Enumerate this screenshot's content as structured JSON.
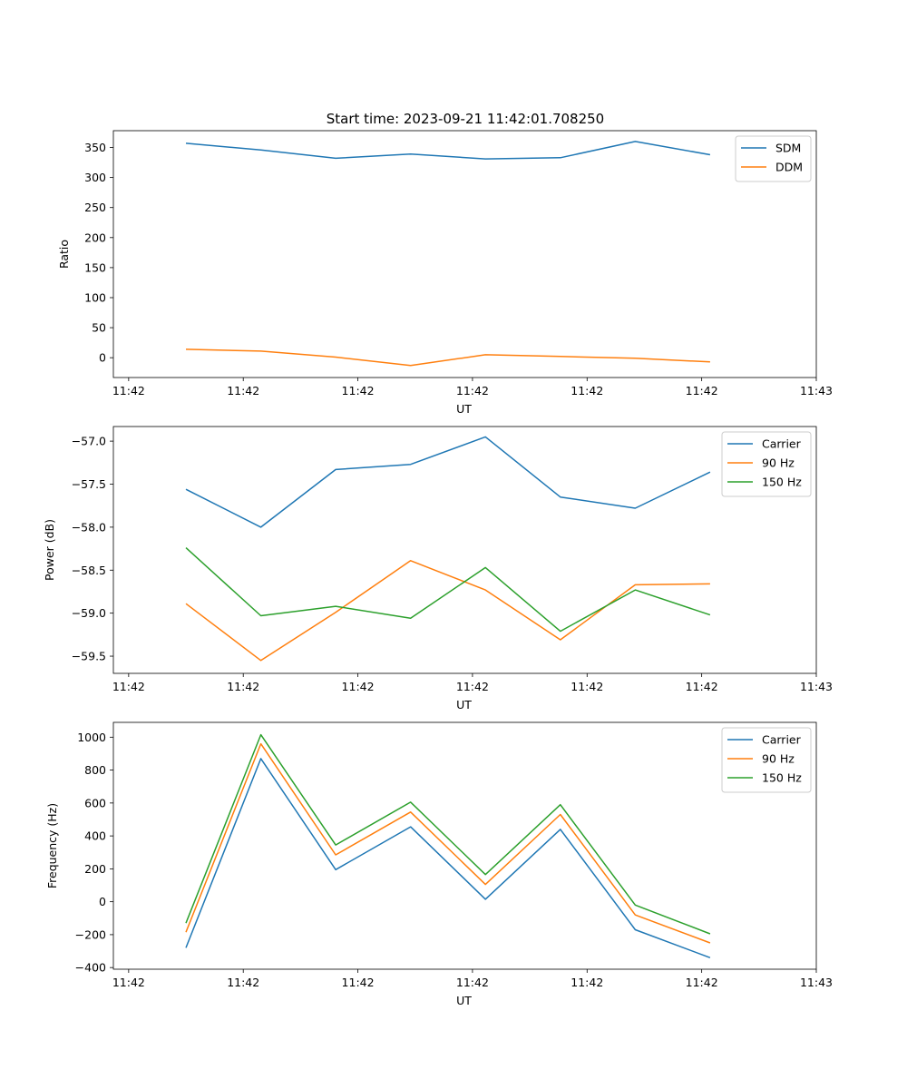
{
  "figure_title": "Start time: 2023-09-21 11:42:01.708250",
  "colors": {
    "blue": "#1f77b4",
    "orange": "#ff7f0e",
    "green": "#2ca02c"
  },
  "chart_data": [
    {
      "type": "line",
      "title": "Start time: 2023-09-21 11:42:01.708250",
      "xlabel": "UT",
      "ylabel": "Ratio",
      "legend": "top-right",
      "xlim": [
        -0.2,
        9
      ],
      "ylim": [
        -33,
        378
      ],
      "x_ticks": [
        0,
        1.5,
        3,
        4.5,
        6,
        7.5,
        9
      ],
      "x_tick_labels": [
        "11:42",
        "11:42",
        "11:42",
        "11:42",
        "11:42",
        "11:42",
        "11:43"
      ],
      "y_ticks": [
        0,
        50,
        100,
        150,
        200,
        250,
        300,
        350
      ],
      "y_tick_labels": [
        "0",
        "50",
        "100",
        "150",
        "200",
        "250",
        "300",
        "350"
      ],
      "x": [
        0.75,
        1.73,
        2.71,
        3.69,
        4.67,
        5.65,
        6.63,
        7.61
      ],
      "series": [
        {
          "name": "SDM",
          "color": "#1f77b4",
          "values": [
            357,
            346,
            332,
            339,
            331,
            333,
            360,
            338
          ]
        },
        {
          "name": "DDM",
          "color": "#ff7f0e",
          "values": [
            14,
            11,
            1,
            -13,
            5,
            2,
            -1,
            -7
          ]
        }
      ]
    },
    {
      "type": "line",
      "title": "",
      "xlabel": "UT",
      "ylabel": "Power (dB)",
      "legend": "top-right",
      "xlim": [
        -0.2,
        9
      ],
      "ylim": [
        -59.7,
        -56.83
      ],
      "x_ticks": [
        0,
        1.5,
        3,
        4.5,
        6,
        7.5,
        9
      ],
      "x_tick_labels": [
        "11:42",
        "11:42",
        "11:42",
        "11:42",
        "11:42",
        "11:42",
        "11:43"
      ],
      "y_ticks": [
        -59.5,
        -59.0,
        -58.5,
        -58.0,
        -57.5,
        -57.0
      ],
      "y_tick_labels": [
        "−59.5",
        "−59.0",
        "−58.5",
        "−58.0",
        "−57.5",
        "−57.0"
      ],
      "x": [
        0.75,
        1.73,
        2.71,
        3.69,
        4.67,
        5.65,
        6.63,
        7.61
      ],
      "series": [
        {
          "name": "Carrier",
          "color": "#1f77b4",
          "values": [
            -57.56,
            -58.0,
            -57.33,
            -57.27,
            -56.95,
            -57.65,
            -57.78,
            -57.36
          ]
        },
        {
          "name": "90 Hz",
          "color": "#ff7f0e",
          "values": [
            -58.89,
            -59.55,
            -58.99,
            -58.39,
            -58.73,
            -59.31,
            -58.67,
            -58.66
          ]
        },
        {
          "name": "150 Hz",
          "color": "#2ca02c",
          "values": [
            -58.24,
            -59.03,
            -58.92,
            -59.06,
            -58.47,
            -59.21,
            -58.73,
            -59.02
          ]
        }
      ]
    },
    {
      "type": "line",
      "title": "",
      "xlabel": "UT",
      "ylabel": "Frequency (Hz)",
      "legend": "top-right",
      "xlim": [
        -0.2,
        9
      ],
      "ylim": [
        -410,
        1090
      ],
      "x_ticks": [
        0,
        1.5,
        3,
        4.5,
        6,
        7.5,
        9
      ],
      "x_tick_labels": [
        "11:42",
        "11:42",
        "11:42",
        "11:42",
        "11:42",
        "11:42",
        "11:43"
      ],
      "y_ticks": [
        -400,
        -200,
        0,
        200,
        400,
        600,
        800,
        1000
      ],
      "y_tick_labels": [
        "−400",
        "−200",
        "0",
        "200",
        "400",
        "600",
        "800",
        "1000"
      ],
      "x": [
        0.75,
        1.73,
        2.71,
        3.69,
        4.67,
        5.65,
        6.63,
        7.61
      ],
      "series": [
        {
          "name": "Carrier",
          "color": "#1f77b4",
          "values": [
            -280,
            870,
            195,
            455,
            15,
            440,
            -170,
            -340
          ]
        },
        {
          "name": "90 Hz",
          "color": "#ff7f0e",
          "values": [
            -185,
            960,
            285,
            545,
            105,
            530,
            -80,
            -250
          ]
        },
        {
          "name": "150 Hz",
          "color": "#2ca02c",
          "values": [
            -130,
            1015,
            345,
            605,
            165,
            590,
            -20,
            -195
          ]
        }
      ]
    }
  ]
}
